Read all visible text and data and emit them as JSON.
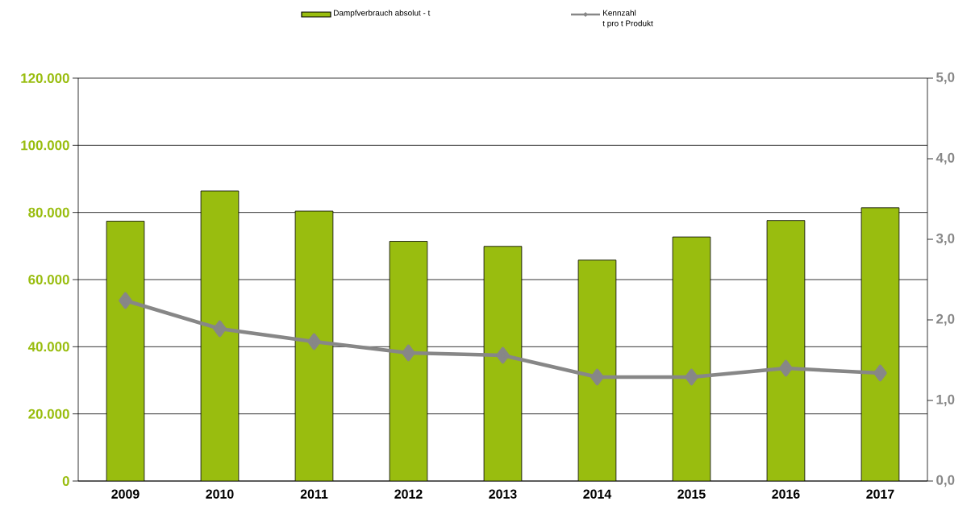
{
  "chart_data": {
    "type": "bar",
    "categories": [
      "2009",
      "2010",
      "2011",
      "2012",
      "2013",
      "2014",
      "2015",
      "2016",
      "2017"
    ],
    "series": [
      {
        "name": "Dampfverbrauch absolut - t",
        "color": "#99bd0f",
        "values": [
          77400,
          86400,
          80400,
          71400,
          69900,
          65800,
          72700,
          77600,
          81400
        ]
      },
      {
        "name": "Kennzahl\nt pro t Produkt",
        "type": "line",
        "axis": "y2",
        "color": "#878787",
        "marker": "diamond",
        "values": [
          2.24,
          1.89,
          1.73,
          1.59,
          1.56,
          1.29,
          1.29,
          1.4,
          1.34
        ]
      }
    ],
    "ylim": [
      0,
      120000
    ],
    "yticks": [
      {
        "value": 0,
        "label": "0"
      },
      {
        "value": 20000,
        "label": "20.000"
      },
      {
        "value": 40000,
        "label": "40.000"
      },
      {
        "value": 60000,
        "label": "60.000"
      },
      {
        "value": 80000,
        "label": "80.000"
      },
      {
        "value": 100000,
        "label": "100.000"
      },
      {
        "value": 120000,
        "label": "120.000"
      }
    ],
    "y2lim": [
      0,
      5
    ],
    "y2ticks": [
      {
        "value": 0,
        "label": "0,0"
      },
      {
        "value": 1,
        "label": "1,0"
      },
      {
        "value": 2,
        "label": "2,0"
      },
      {
        "value": 3,
        "label": "3,0"
      },
      {
        "value": 4,
        "label": "4,0"
      },
      {
        "value": 5,
        "label": "5,0"
      }
    ],
    "grid": "y",
    "legend": "top"
  }
}
